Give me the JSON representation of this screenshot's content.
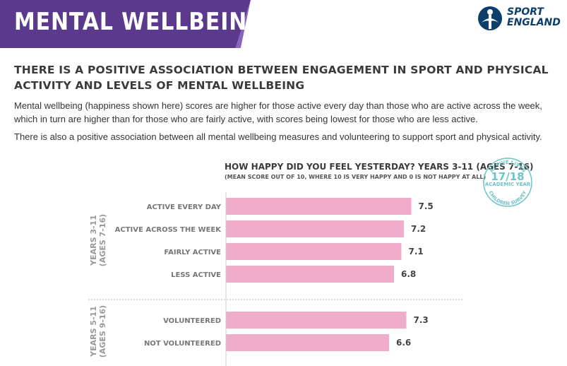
{
  "banner": {
    "title": "MENTAL WELLBEING"
  },
  "logo": {
    "line1": "SPORT",
    "line2": "ENGLAND"
  },
  "headline": "THERE IS A POSITIVE ASSOCIATION BETWEEN ENGAGEMENT IN SPORT AND PHYSICAL ACTIVITY AND LEVELS OF MENTAL WELLBEING",
  "paragraphs": [
    "Mental wellbeing (happiness shown here) scores are higher for those active every day than those who are active across the week, which in turn are higher than for those who are fairly active, with scores being lowest for those who are less active.",
    "There is also a positive association between all mental wellbeing measures and volunteering to support sport and physical activity."
  ],
  "badge": {
    "top_text": "ACTIVE LIVES",
    "main_text": "17/18",
    "sub_text": "ACADEMIC YEAR",
    "bottom_text": "CHILDREN SURVEY"
  },
  "chart_data": {
    "type": "bar",
    "orientation": "horizontal",
    "title": "HOW HAPPY DID YOU FEEL YESTERDAY? YEARS 3-11 (AGES 7-16)",
    "subtitle": "(MEAN SCORE OUT OF 10, WHERE 10 IS VERY HAPPY AND 0 IS NOT HAPPY AT ALL)",
    "xlim": [
      0,
      10
    ],
    "bar_color": "#efadcb",
    "groups": [
      {
        "label_line1": "YEARS 3-11",
        "label_line2": "(AGES 7-16)",
        "categories": [
          "ACTIVE EVERY DAY",
          "ACTIVE ACROSS THE WEEK",
          "FAIRLY ACTIVE",
          "LESS ACTIVE"
        ],
        "values": [
          7.5,
          7.2,
          7.1,
          6.8
        ],
        "value_labels": [
          "7.5",
          "7.2",
          "7.1",
          "6.8"
        ]
      },
      {
        "label_line1": "YEARS 5-11",
        "label_line2": "(AGES 9-16)",
        "categories": [
          "VOLUNTEERED",
          "NOT VOLUNTEERED"
        ],
        "values": [
          7.3,
          6.6
        ],
        "value_labels": [
          "7.3",
          "6.6"
        ]
      }
    ]
  }
}
